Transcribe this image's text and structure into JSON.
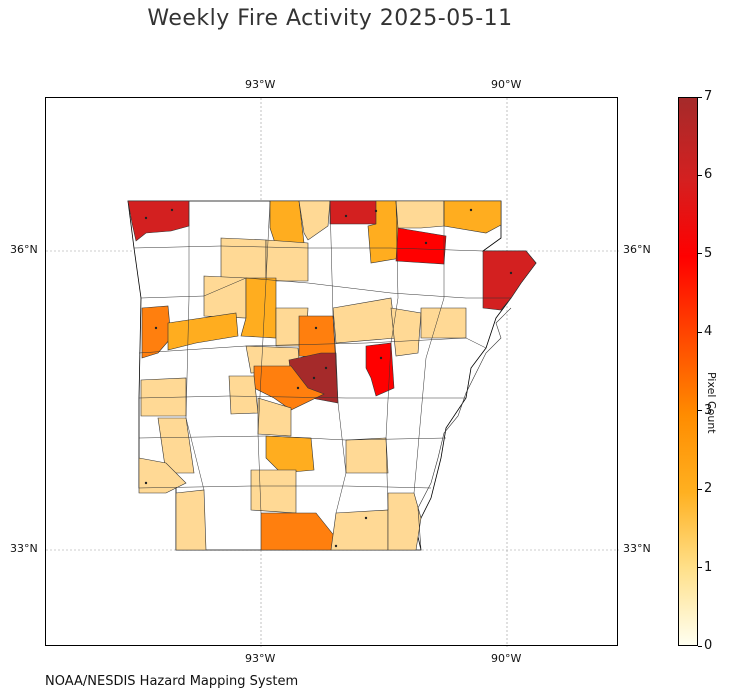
{
  "title": "Weekly Fire Activity 2025-05-11",
  "axes": {
    "lon_labels": [
      "93°W",
      "90°W"
    ],
    "lat_labels": [
      "36°N",
      "33°N"
    ]
  },
  "colorbar": {
    "label": "Pixel Count",
    "ticks": [
      "0",
      "1",
      "2",
      "3",
      "4",
      "5",
      "6",
      "7"
    ],
    "colors": [
      "#ffffff",
      "#ffd995",
      "#ffad1f",
      "#ff7f0e",
      "#ff4500",
      "#ff0000",
      "#d32020",
      "#a52a2a"
    ]
  },
  "footer": "NOAA/NESDIS Hazard Mapping System"
}
